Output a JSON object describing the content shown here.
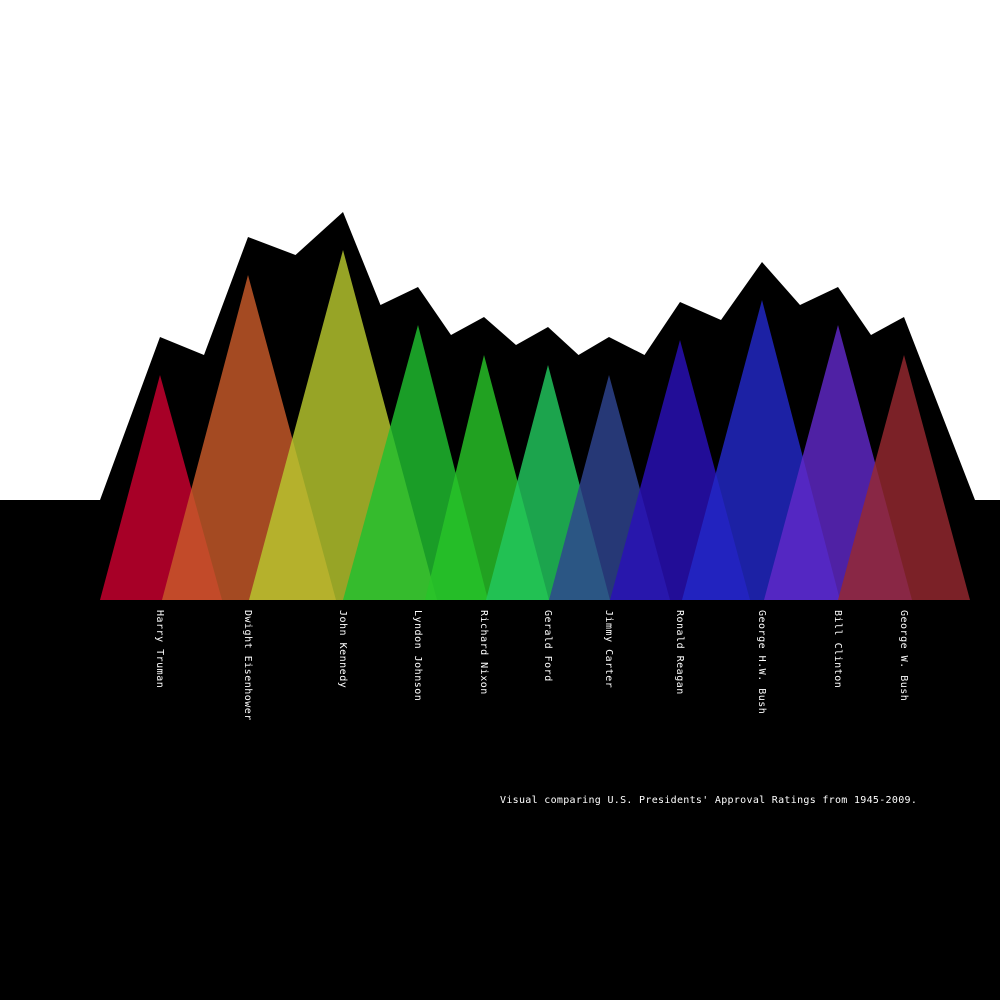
{
  "chart_data": {
    "type": "area",
    "caption": "Visual comparing U.S. Presidents' Approval Ratings from 1945-2009.",
    "series": [
      {
        "name": "Harry Truman",
        "value": 45,
        "color": "#cc0030"
      },
      {
        "name": "Dwight Eisenhower",
        "value": 65,
        "color": "#c85a2a"
      },
      {
        "name": "John Kennedy",
        "value": 70,
        "color": "#b8c82e"
      },
      {
        "name": "Lyndon Johnson",
        "value": 55,
        "color": "#20c030"
      },
      {
        "name": "Richard Nixon",
        "value": 49,
        "color": "#28c428"
      },
      {
        "name": "Gerald Ford",
        "value": 47,
        "color": "#22c85e"
      },
      {
        "name": "Jimmy Carter",
        "value": 45,
        "color": "#2e4490"
      },
      {
        "name": "Ronald Reagan",
        "value": 52,
        "color": "#2a10b8"
      },
      {
        "name": "George H.W. Bush",
        "value": 60,
        "color": "#2228c8"
      },
      {
        "name": "Bill Clinton",
        "value": 55,
        "color": "#6028c8"
      },
      {
        "name": "George W. Bush",
        "value": 49,
        "color": "#962830"
      }
    ]
  },
  "colors": {
    "background_top": "#ffffff",
    "background_bottom": "#000000",
    "silhouette": "#000000",
    "label_text": "#ffffff"
  }
}
